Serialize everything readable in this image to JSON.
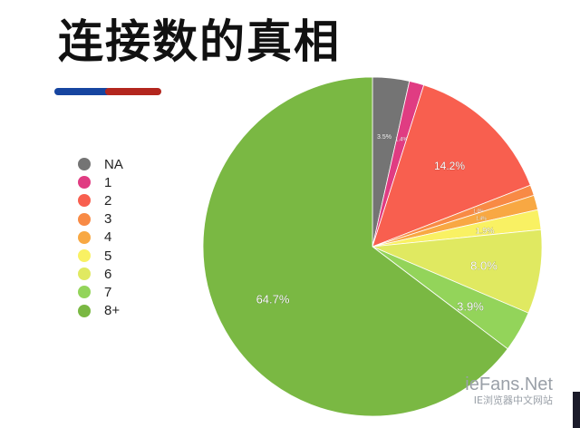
{
  "slide": {
    "title": "连接数的真相"
  },
  "watermark": {
    "brand": "ieFans.Net",
    "subtitle": "IE浏览器中文网站"
  },
  "chart_data": {
    "type": "pie",
    "title": "",
    "start_angle_deg": 0,
    "direction": "clockwise",
    "legend_position": "left",
    "slices": [
      {
        "label": "NA",
        "value": 3.5,
        "display": "3.5%",
        "color": "#747474"
      },
      {
        "label": "1",
        "value": 1.4,
        "display": "1.4%",
        "color": "#e03c82"
      },
      {
        "label": "2",
        "value": 14.2,
        "display": "14.2%",
        "color": "#f85f4f"
      },
      {
        "label": "3",
        "value": 1.0,
        "display": "1.0%",
        "color": "#f88a45"
      },
      {
        "label": "4",
        "value": 1.4,
        "display": "1.4%",
        "color": "#f8a843"
      },
      {
        "label": "5",
        "value": 1.9,
        "display": "1.9%",
        "color": "#f9f163"
      },
      {
        "label": "6",
        "value": 8.0,
        "display": "8.0%",
        "color": "#e0e961"
      },
      {
        "label": "7",
        "value": 3.9,
        "display": "3.9%",
        "color": "#93d45a"
      },
      {
        "label": "8+",
        "value": 64.7,
        "display": "64.7%",
        "color": "#7ab843"
      }
    ]
  }
}
